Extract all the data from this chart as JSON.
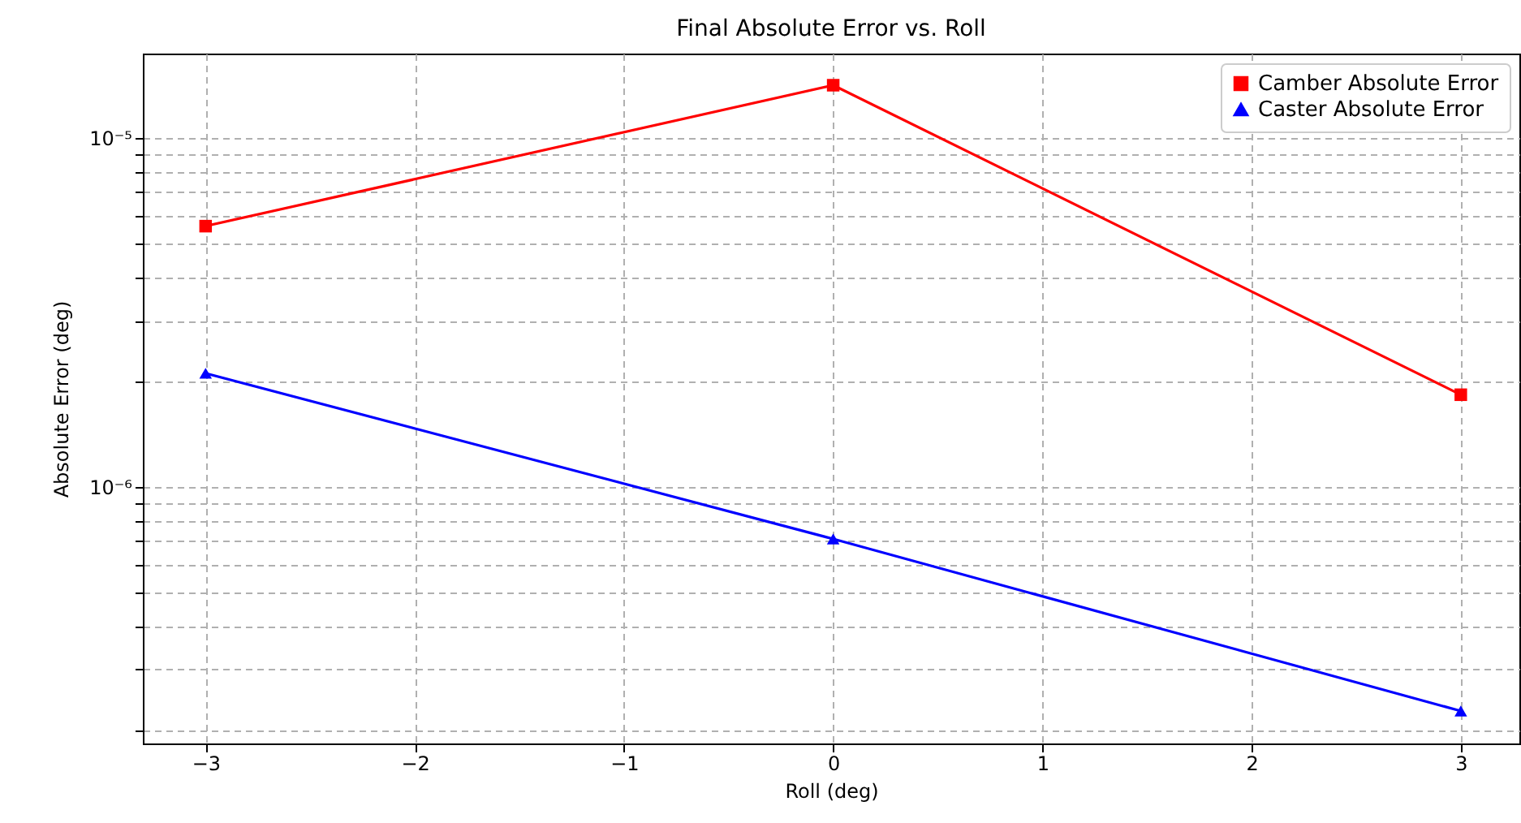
{
  "chart_data": {
    "type": "line",
    "title": "Final Absolute Error vs. Roll",
    "xlabel": "Roll (deg)",
    "ylabel": "Absolute Error (deg)",
    "x": [
      -3,
      0,
      3
    ],
    "series": [
      {
        "name": "Camber Absolute Error",
        "color": "#ff0000",
        "marker": "square",
        "values": [
          5.6e-06,
          1.42e-05,
          1.84e-06
        ]
      },
      {
        "name": "Caster Absolute Error",
        "color": "#0000ff",
        "marker": "triangle",
        "values": [
          2.12e-06,
          7.1e-07,
          2.28e-07
        ]
      }
    ],
    "log": "y",
    "grid": true,
    "legend": "top right",
    "line_style": "solid",
    "xlim": [
      -3.3,
      3.28
    ],
    "xticks": [
      {
        "value": -3,
        "label": "−3"
      },
      {
        "value": -2,
        "label": "−2"
      },
      {
        "value": -1,
        "label": "−1"
      },
      0,
      1,
      2,
      3
    ],
    "ylim": [
      1.84e-07,
      1.75e-05
    ],
    "yticks": [
      {
        "value": 2e-07,
        "label": null
      },
      {
        "value": 3e-07,
        "label": null
      },
      {
        "value": 4e-07,
        "label": null
      },
      {
        "value": 5e-07,
        "label": null
      },
      {
        "value": 6e-07,
        "label": null
      },
      {
        "value": 7e-07,
        "label": null
      },
      {
        "value": 8e-07,
        "label": null
      },
      {
        "value": 9e-07,
        "label": null
      },
      {
        "value": 1e-06,
        "label": "10⁻⁶"
      },
      {
        "value": 2e-06,
        "label": null
      },
      {
        "value": 3e-06,
        "label": null
      },
      {
        "value": 4e-06,
        "label": null
      },
      {
        "value": 5e-06,
        "label": null
      },
      {
        "value": 6e-06,
        "label": null
      },
      {
        "value": 7e-06,
        "label": null
      },
      {
        "value": 8e-06,
        "label": null
      },
      {
        "value": 9e-06,
        "label": null
      },
      {
        "value": 1e-05,
        "label": "10⁻⁵"
      }
    ]
  }
}
